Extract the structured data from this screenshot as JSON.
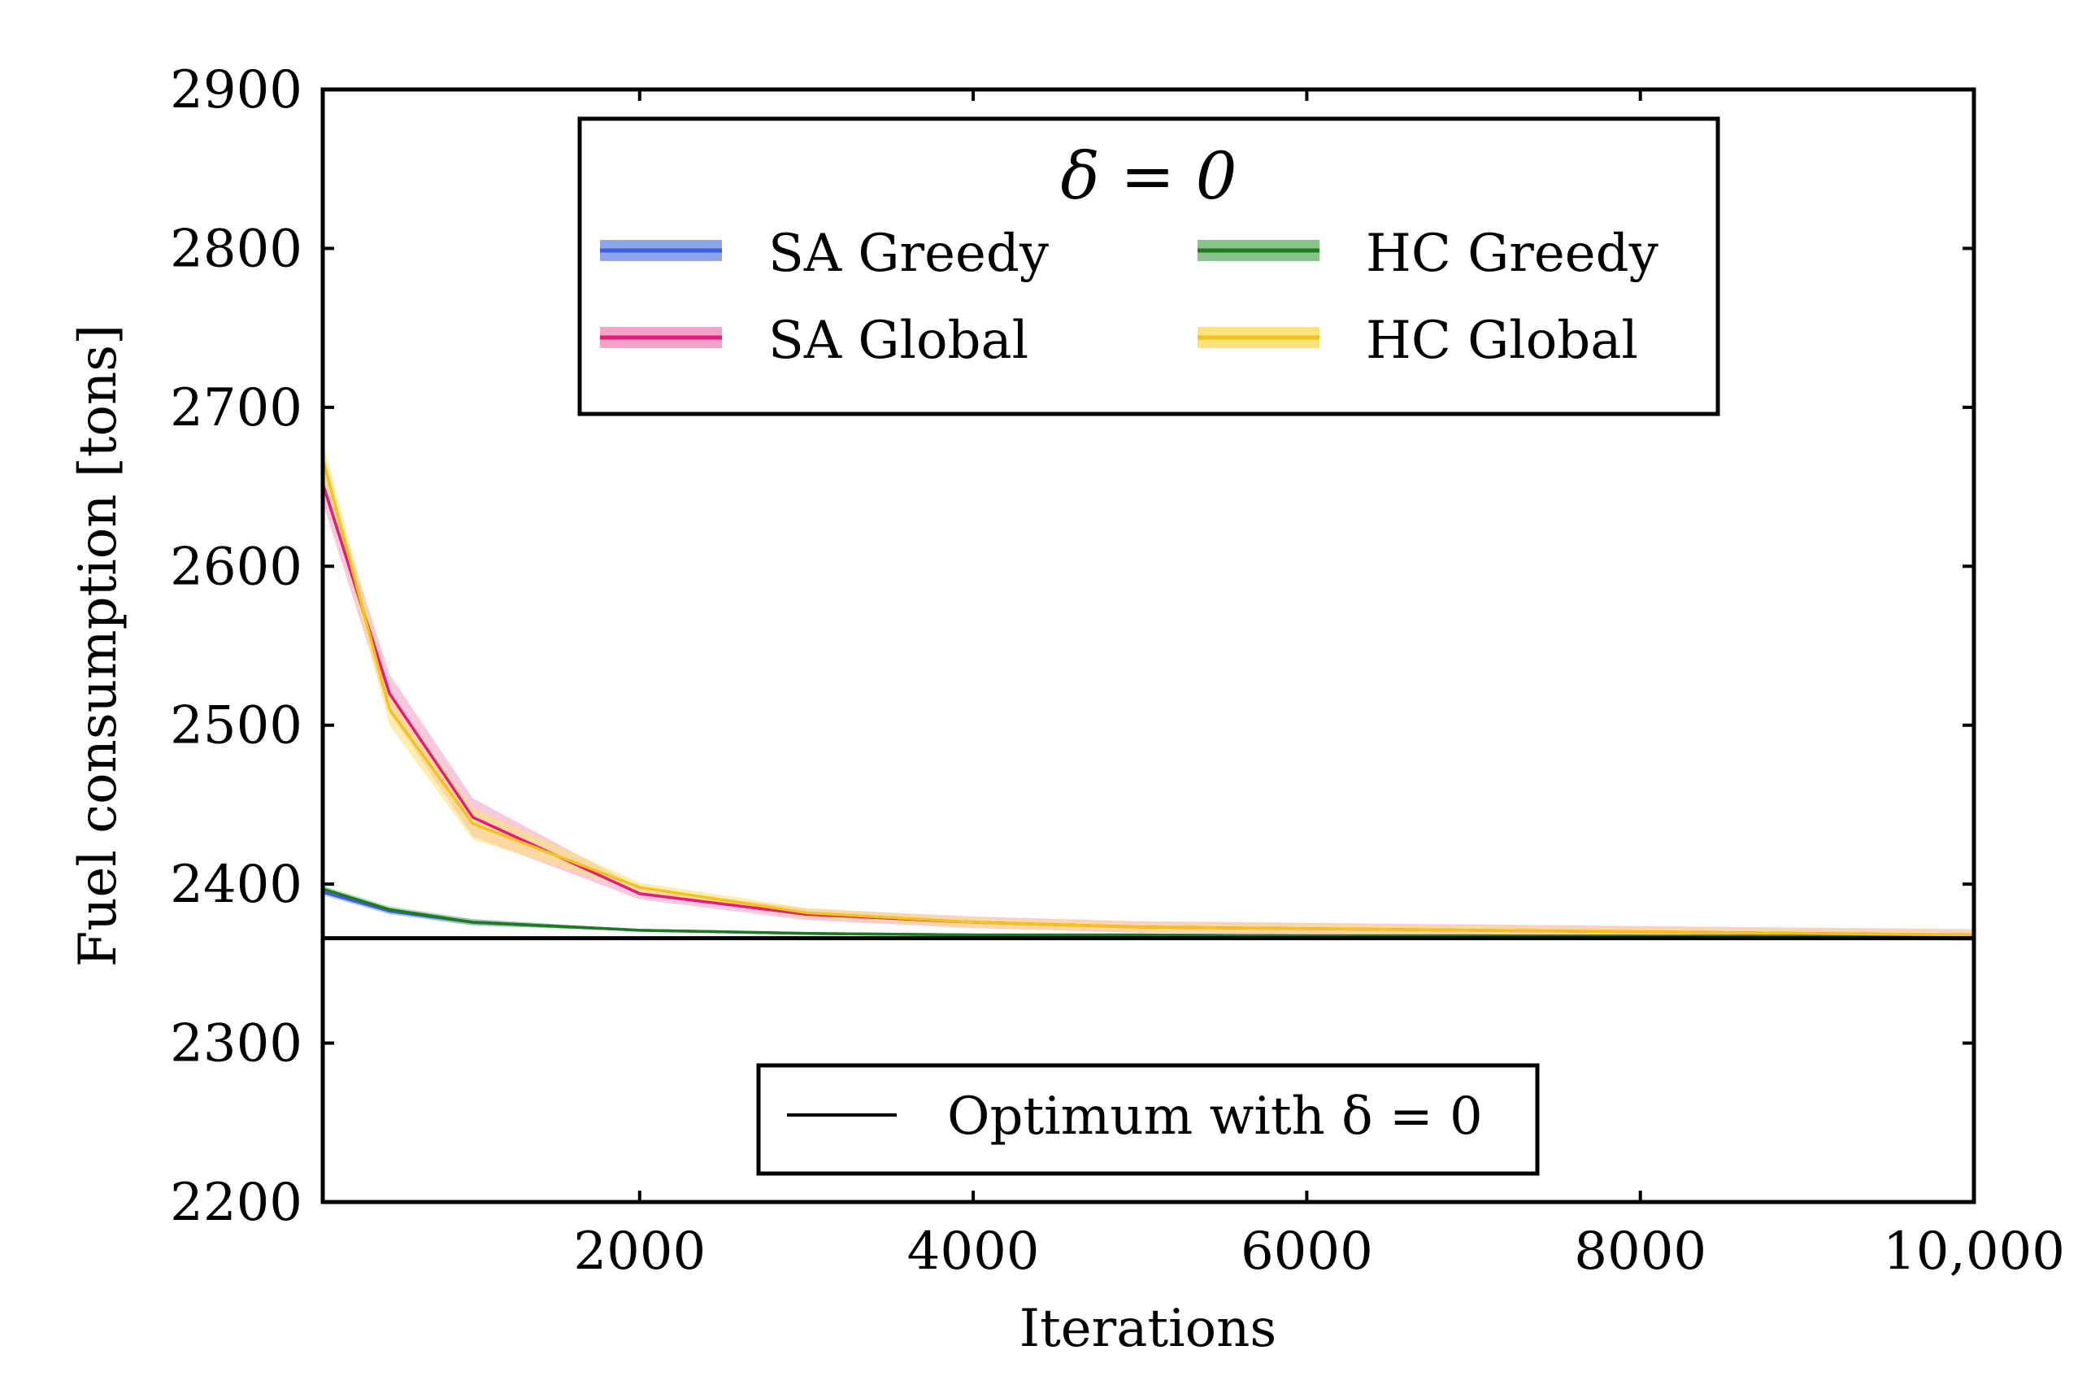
{
  "chart_data": {
    "type": "line",
    "xlabel": "Iterations",
    "ylabel": "Fuel consumption [tons]",
    "xlim": [
      100,
      10000
    ],
    "ylim": [
      2200,
      2900
    ],
    "grid": false,
    "x_ticks": [
      2000,
      4000,
      6000,
      8000,
      10000
    ],
    "x_tick_labels": [
      "2000",
      "4000",
      "6000",
      "8000",
      "10,000"
    ],
    "y_ticks": [
      2200,
      2300,
      2400,
      2500,
      2600,
      2700,
      2800,
      2900
    ],
    "y_tick_labels": [
      "2200",
      "2300",
      "2400",
      "2500",
      "2600",
      "2700",
      "2800",
      "2900"
    ],
    "legend_title": "δ = 0",
    "legend_placement": "top-center",
    "series": [
      {
        "name": "SA Greedy",
        "color": "#3a5fe0",
        "band_color": "#8fa6ec",
        "x": [
          100,
          500,
          1000,
          2000,
          3000,
          4000,
          5000,
          6000,
          7000,
          8000,
          9000,
          10000
        ],
        "values": [
          2395,
          2383,
          2376,
          2371,
          2369,
          2368,
          2368,
          2367.5,
          2367.5,
          2367.3,
          2367.2,
          2367.1
        ],
        "band": 2
      },
      {
        "name": "SA Global",
        "color": "#e8197a",
        "band_color": "#f4a3c8",
        "x": [
          100,
          500,
          1000,
          2000,
          3000,
          4000,
          5000,
          6000,
          7000,
          8000,
          9000,
          10000
        ],
        "values": [
          2652,
          2520,
          2442,
          2394,
          2381,
          2376,
          2373,
          2372,
          2371,
          2370,
          2369,
          2368
        ],
        "band": 12
      },
      {
        "name": "HC Greedy",
        "color": "#1e7a1e",
        "band_color": "#88c488",
        "x": [
          100,
          500,
          1000,
          2000,
          3000,
          4000,
          5000,
          6000,
          7000,
          8000,
          9000,
          10000
        ],
        "values": [
          2397,
          2384,
          2376,
          2371,
          2369,
          2368,
          2368,
          2367.5,
          2367.5,
          2367.3,
          2367.2,
          2367.1
        ],
        "band": 2
      },
      {
        "name": "HC Global",
        "color": "#f4c21a",
        "band_color": "#fbe27a",
        "x": [
          100,
          500,
          1000,
          2000,
          3000,
          4000,
          5000,
          6000,
          7000,
          8000,
          9000,
          10000
        ],
        "values": [
          2668,
          2510,
          2438,
          2398,
          2382,
          2376,
          2373,
          2372,
          2371,
          2370,
          2369,
          2368
        ],
        "band": 10
      }
    ],
    "reference_line": {
      "name": "Optimum with δ = 0",
      "value": 2366,
      "color": "#000000"
    }
  }
}
